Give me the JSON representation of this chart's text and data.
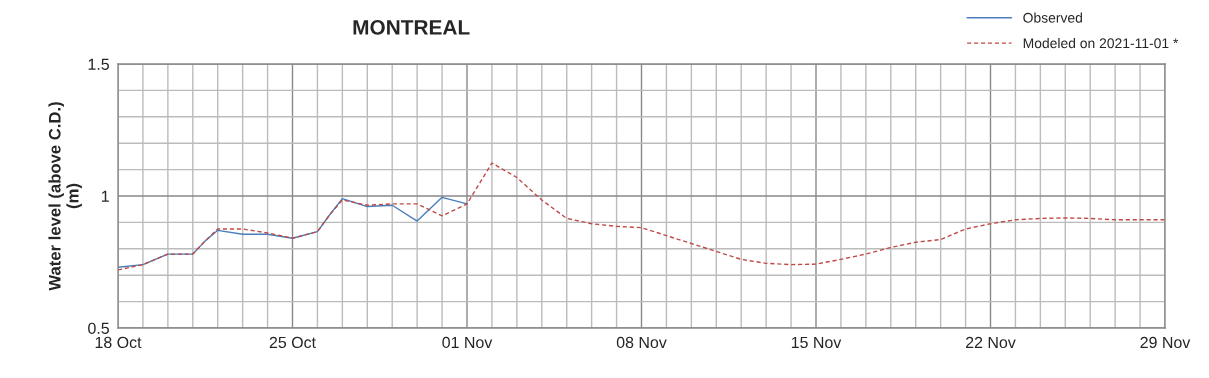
{
  "chart_data": {
    "type": "line",
    "title": "MONTREAL",
    "ylabel": "Water level (above C.D.)\n(m)",
    "series": [
      {
        "name": "Observed",
        "color": "#4a7ebb",
        "line_style": "solid",
        "x": [
          "2021-10-18",
          "2021-10-19",
          "2021-10-20",
          "2021-10-21",
          "2021-10-21T12:00",
          "2021-10-22",
          "2021-10-23",
          "2021-10-24",
          "2021-10-25",
          "2021-10-26",
          "2021-10-26T12:00",
          "2021-10-27",
          "2021-10-28",
          "2021-10-29",
          "2021-10-30",
          "2021-10-31",
          "2021-11-01"
        ],
        "values": [
          0.73,
          0.74,
          0.78,
          0.78,
          0.83,
          0.87,
          0.855,
          0.855,
          0.84,
          0.865,
          0.93,
          0.99,
          0.96,
          0.965,
          0.905,
          0.995,
          0.97
        ]
      },
      {
        "name": "Modeled on 2021-11-01 *",
        "color": "#be4b48",
        "line_style": "dashed",
        "x": [
          "2021-10-18",
          "2021-10-19",
          "2021-10-20",
          "2021-10-21",
          "2021-10-21T12:00",
          "2021-10-22",
          "2021-10-23",
          "2021-10-24",
          "2021-10-25",
          "2021-10-26",
          "2021-10-26T12:00",
          "2021-10-27",
          "2021-10-28",
          "2021-10-29",
          "2021-10-30",
          "2021-10-31",
          "2021-11-01",
          "2021-11-02",
          "2021-11-03",
          "2021-11-04",
          "2021-11-05",
          "2021-11-06",
          "2021-11-07",
          "2021-11-08",
          "2021-11-09",
          "2021-11-10",
          "2021-11-11",
          "2021-11-12",
          "2021-11-13",
          "2021-11-14",
          "2021-11-15",
          "2021-11-16",
          "2021-11-17",
          "2021-11-18",
          "2021-11-19",
          "2021-11-20",
          "2021-11-21",
          "2021-11-22",
          "2021-11-23",
          "2021-11-24",
          "2021-11-25",
          "2021-11-26",
          "2021-11-27",
          "2021-11-28",
          "2021-11-29"
        ],
        "values": [
          0.72,
          0.74,
          0.78,
          0.78,
          0.83,
          0.875,
          0.875,
          0.86,
          0.84,
          0.865,
          0.93,
          0.985,
          0.965,
          0.97,
          0.97,
          0.925,
          0.97,
          1.125,
          1.07,
          0.985,
          0.915,
          0.895,
          0.885,
          0.88,
          0.85,
          0.82,
          0.79,
          0.76,
          0.745,
          0.74,
          0.742,
          0.76,
          0.78,
          0.805,
          0.825,
          0.835,
          0.875,
          0.895,
          0.91,
          0.915,
          0.917,
          0.915,
          0.91,
          0.91,
          0.91
        ]
      }
    ],
    "xlim": [
      "2021-10-18",
      "2021-11-29"
    ],
    "xticks": [
      {
        "value": "2021-10-18",
        "label": "18 Oct"
      },
      {
        "value": "2021-10-19",
        "label": null
      },
      {
        "value": "2021-10-20",
        "label": null
      },
      {
        "value": "2021-10-21",
        "label": null
      },
      {
        "value": "2021-10-22",
        "label": null
      },
      {
        "value": "2021-10-23",
        "label": null
      },
      {
        "value": "2021-10-24",
        "label": null
      },
      {
        "value": "2021-10-25",
        "label": "25 Oct"
      },
      {
        "value": "2021-10-26",
        "label": null
      },
      {
        "value": "2021-10-27",
        "label": null
      },
      {
        "value": "2021-10-28",
        "label": null
      },
      {
        "value": "2021-10-29",
        "label": null
      },
      {
        "value": "2021-10-30",
        "label": null
      },
      {
        "value": "2021-10-31",
        "label": null
      },
      {
        "value": "2021-11-01",
        "label": "01 Nov"
      },
      {
        "value": "2021-11-02",
        "label": null
      },
      {
        "value": "2021-11-03",
        "label": null
      },
      {
        "value": "2021-11-04",
        "label": null
      },
      {
        "value": "2021-11-05",
        "label": null
      },
      {
        "value": "2021-11-06",
        "label": null
      },
      {
        "value": "2021-11-07",
        "label": null
      },
      {
        "value": "2021-11-08",
        "label": "08 Nov"
      },
      {
        "value": "2021-11-09",
        "label": null
      },
      {
        "value": "2021-11-10",
        "label": null
      },
      {
        "value": "2021-11-11",
        "label": null
      },
      {
        "value": "2021-11-12",
        "label": null
      },
      {
        "value": "2021-11-13",
        "label": null
      },
      {
        "value": "2021-11-14",
        "label": null
      },
      {
        "value": "2021-11-15",
        "label": "15 Nov"
      },
      {
        "value": "2021-11-16",
        "label": null
      },
      {
        "value": "2021-11-17",
        "label": null
      },
      {
        "value": "2021-11-18",
        "label": null
      },
      {
        "value": "2021-11-19",
        "label": null
      },
      {
        "value": "2021-11-20",
        "label": null
      },
      {
        "value": "2021-11-21",
        "label": null
      },
      {
        "value": "2021-11-22",
        "label": "22 Nov"
      },
      {
        "value": "2021-11-23",
        "label": null
      },
      {
        "value": "2021-11-24",
        "label": null
      },
      {
        "value": "2021-11-25",
        "label": null
      },
      {
        "value": "2021-11-26",
        "label": null
      },
      {
        "value": "2021-11-27",
        "label": null
      },
      {
        "value": "2021-11-28",
        "label": null
      },
      {
        "value": "2021-11-29",
        "label": "29 Nov"
      }
    ],
    "ylim": [
      0.5,
      1.5
    ],
    "yticks": [
      0.5,
      {
        "value": 0.6,
        "label": null
      },
      {
        "value": 0.7,
        "label": null
      },
      {
        "value": 0.8,
        "label": null
      },
      {
        "value": 0.9,
        "label": null
      },
      1,
      {
        "value": 1.1,
        "label": null
      },
      {
        "value": 1.2,
        "label": null
      },
      {
        "value": 1.3,
        "label": null
      },
      {
        "value": 1.4,
        "label": null
      },
      1.5
    ],
    "grid": true,
    "legend": "top right",
    "marker": "none"
  }
}
